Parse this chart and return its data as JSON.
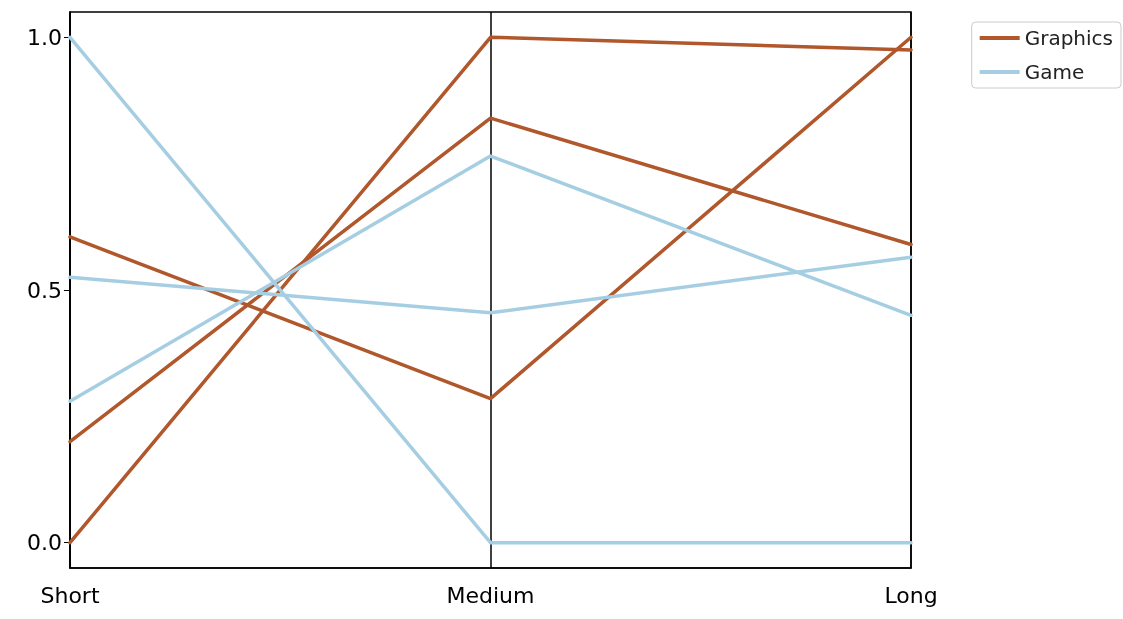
{
  "chart_data": {
    "type": "line",
    "categories": [
      "Short",
      "Medium",
      "Long"
    ],
    "series": [
      {
        "name": "Graphics",
        "color": "#b0572b",
        "values": [
          0.605,
          0.285,
          1.0
        ]
      },
      {
        "color": "#b0572b",
        "values": [
          0.2,
          0.84,
          0.59
        ]
      },
      {
        "color": "#b0572b",
        "values": [
          0.0,
          1.0,
          0.975
        ]
      },
      {
        "name": "Game",
        "color": "#a6cee3",
        "values": [
          1.0,
          0.0,
          0.0
        ]
      },
      {
        "color": "#a6cee3",
        "values": [
          0.525,
          0.455,
          0.565
        ]
      },
      {
        "color": "#a6cee3",
        "values": [
          0.28,
          0.765,
          0.45
        ]
      }
    ],
    "ylim": [
      -0.05,
      1.05
    ],
    "yticks": [
      {
        "value": 0,
        "label": "0.0"
      },
      {
        "value": 0.5,
        "label": "0.5"
      },
      {
        "value": 1,
        "label": "1.0"
      }
    ],
    "grid": "x",
    "legend": "top right",
    "marker": "none",
    "line_style": "solid"
  }
}
